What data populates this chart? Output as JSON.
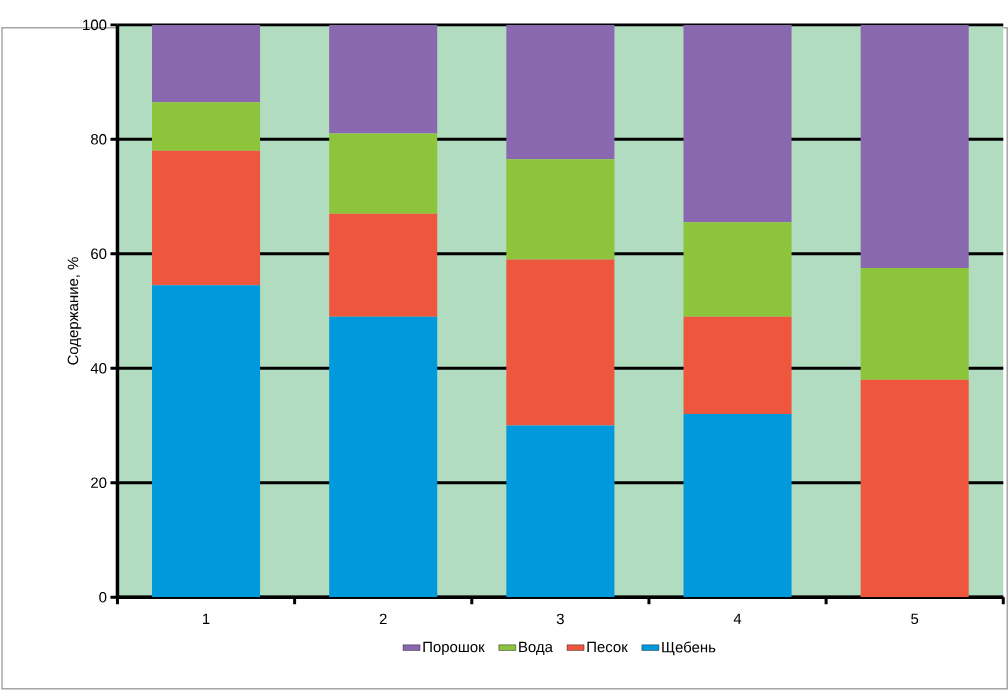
{
  "chart_data": {
    "type": "bar",
    "stacked": true,
    "ylabel": "Содержание, %",
    "categories": [
      "1",
      "2",
      "3",
      "4",
      "5"
    ],
    "series": [
      {
        "name": "Щебень",
        "color": "#0099dc",
        "values": [
          54.5,
          49,
          30,
          32,
          0
        ]
      },
      {
        "name": "Песок",
        "color": "#ee573e",
        "values": [
          23.5,
          18,
          29,
          17,
          38
        ]
      },
      {
        "name": "Вода",
        "color": "#8cc43c",
        "values": [
          8.5,
          14,
          17.5,
          16.5,
          19.5
        ]
      },
      {
        "name": "Порошок",
        "color": "#8a68b0",
        "values": [
          13.5,
          19,
          23.5,
          34.5,
          42.5
        ]
      }
    ],
    "ylim": [
      0,
      100
    ],
    "yticks": [
      0,
      20,
      40,
      60,
      80,
      100
    ],
    "grid": "y",
    "legend": "bottom"
  }
}
